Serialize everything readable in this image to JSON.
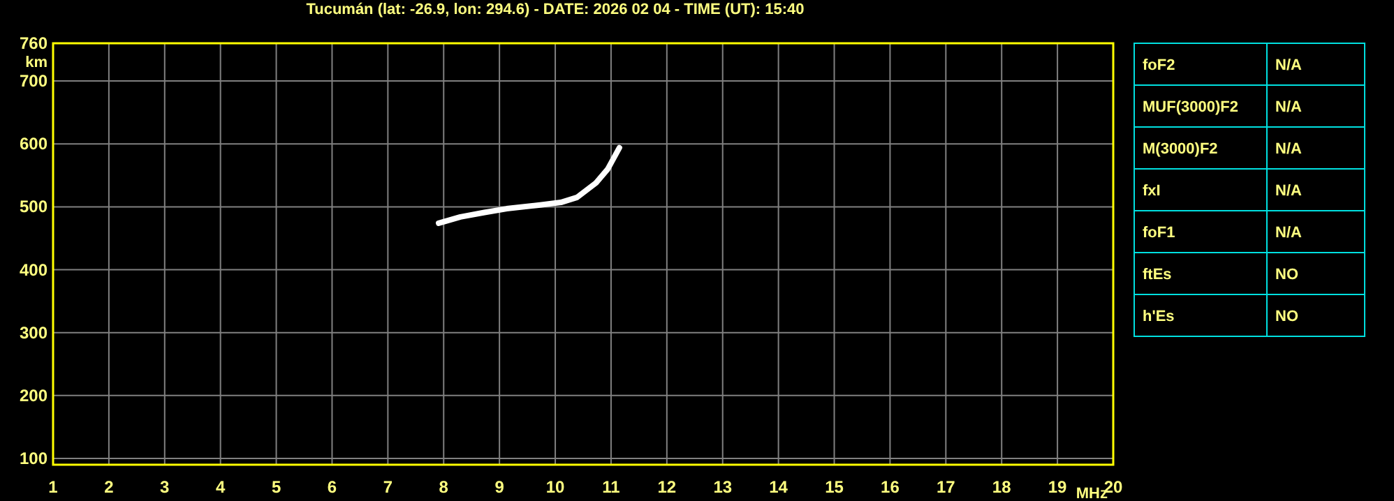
{
  "chart_data": {
    "type": "line",
    "title": "Tucumán (lat: -26.9, lon: 294.6) - DATE: 2026 02 04 - TIME (UT): 15:40",
    "xlabel": "MHz",
    "ylabel": "km",
    "xlim": [
      1,
      20
    ],
    "xticks": [
      1,
      2,
      3,
      4,
      5,
      6,
      7,
      8,
      9,
      10,
      11,
      12,
      13,
      14,
      15,
      16,
      17,
      18,
      19,
      20
    ],
    "ylim": [
      90,
      760
    ],
    "yticks": [
      100,
      200,
      300,
      400,
      500,
      600,
      700,
      760
    ],
    "grid": true,
    "marker": "none",
    "line_style": "solid",
    "series": [
      {
        "color": "#ffffff",
        "x": [
          7.91,
          8.3,
          8.73,
          9.13,
          9.73,
          10.1,
          10.39,
          10.73,
          10.94,
          11.15
        ],
        "values": [
          474,
          484,
          491,
          497,
          503,
          507,
          515,
          538,
          560,
          594
        ]
      }
    ],
    "annotations": [
      "foF2",
      "N/A",
      "MUF(3000)F2",
      "N/A",
      "M(3000)F2",
      "N/A",
      "fxI",
      "N/A",
      "foF1",
      "N/A",
      "ftEs",
      "NO",
      "h'Es",
      "NO"
    ]
  }
}
